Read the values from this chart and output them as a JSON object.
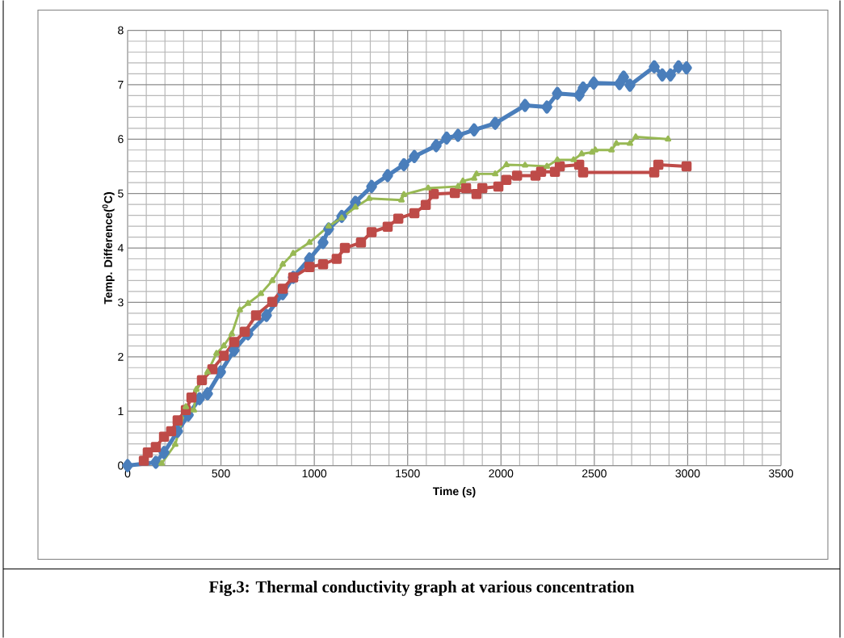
{
  "chart_data": {
    "type": "line",
    "xlabel": "Time (s)",
    "ylabel": "Temp. Difference($^{0}$C)",
    "annotations": [
      "Fig.3: Thermal conductivity graph at various concentration"
    ],
    "xlim": [
      0,
      3500
    ],
    "ylim": [
      0,
      8
    ],
    "xticks": [
      0,
      500,
      1000,
      1500,
      2000,
      2500,
      3000,
      3500
    ],
    "yticks": [
      0,
      1,
      2,
      3,
      4,
      5,
      6,
      7,
      8
    ],
    "grid": true,
    "line_style": "solid",
    "series": [
      {
        "color": "#4a7ebb",
        "marker": "diamond",
        "x": [
          0,
          151,
          195,
          268,
          325,
          385,
          428,
          498,
          571,
          645,
          744,
          831,
          887,
          974,
          1047,
          1077,
          1147,
          1220,
          1307,
          1393,
          1480,
          1536,
          1653,
          1709,
          1770,
          1856,
          1969,
          2129,
          2246,
          2302,
          2419,
          2440,
          2497,
          2635,
          2657,
          2691,
          2821,
          2864,
          2908,
          2951,
          2994
        ],
        "values": [
          0,
          0.06,
          0.24,
          0.63,
          0.93,
          1.23,
          1.32,
          1.72,
          2.12,
          2.42,
          2.76,
          3.16,
          3.46,
          3.8,
          4.1,
          4.35,
          4.58,
          4.84,
          5.13,
          5.33,
          5.53,
          5.68,
          5.88,
          6.02,
          6.07,
          6.17,
          6.29,
          6.62,
          6.59,
          6.84,
          6.81,
          6.94,
          7.03,
          7.02,
          7.14,
          6.99,
          7.33,
          7.18,
          7.18,
          7.33,
          7.31
        ]
      },
      {
        "color": "#be4b48",
        "marker": "square",
        "x": [
          87,
          108,
          151,
          195,
          233,
          268,
          312,
          342,
          398,
          454,
          515,
          571,
          628,
          688,
          775,
          831,
          887,
          974,
          1047,
          1120,
          1164,
          1250,
          1307,
          1393,
          1450,
          1536,
          1597,
          1640,
          1753,
          1813,
          1869,
          1900,
          1986,
          2029,
          2086,
          2185,
          2215,
          2289,
          2315,
          2419,
          2440,
          2821,
          2843,
          2994
        ],
        "values": [
          0.09,
          0.24,
          0.34,
          0.53,
          0.63,
          0.83,
          1.02,
          1.25,
          1.57,
          1.77,
          2.02,
          2.27,
          2.46,
          2.76,
          3.01,
          3.25,
          3.46,
          3.65,
          3.7,
          3.8,
          4.0,
          4.1,
          4.29,
          4.39,
          4.54,
          4.64,
          4.79,
          4.99,
          5.01,
          5.1,
          4.99,
          5.1,
          5.13,
          5.25,
          5.33,
          5.33,
          5.4,
          5.4,
          5.5,
          5.53,
          5.39,
          5.39,
          5.53,
          5.5
        ]
      },
      {
        "color": "#98b954",
        "marker": "triangle",
        "x": [
          182,
          255,
          312,
          355,
          368,
          428,
          476,
          515,
          558,
          601,
          645,
          714,
          775,
          831,
          887,
          974,
          1077,
          1147,
          1220,
          1294,
          1467,
          1480,
          1610,
          1770,
          1796,
          1856,
          1869,
          1969,
          2029,
          2129,
          2246,
          2302,
          2389,
          2432,
          2488,
          2505,
          2592,
          2618,
          2691,
          2722,
          2895
        ],
        "values": [
          0.04,
          0.39,
          1.08,
          1.02,
          1.4,
          1.72,
          2.06,
          2.2,
          2.42,
          2.86,
          2.98,
          3.16,
          3.4,
          3.7,
          3.9,
          4.1,
          4.4,
          4.55,
          4.75,
          4.91,
          4.88,
          4.98,
          5.1,
          5.13,
          5.23,
          5.28,
          5.36,
          5.36,
          5.53,
          5.52,
          5.5,
          5.62,
          5.62,
          5.73,
          5.76,
          5.8,
          5.8,
          5.92,
          5.92,
          6.04,
          6.0
        ]
      }
    ]
  }
}
